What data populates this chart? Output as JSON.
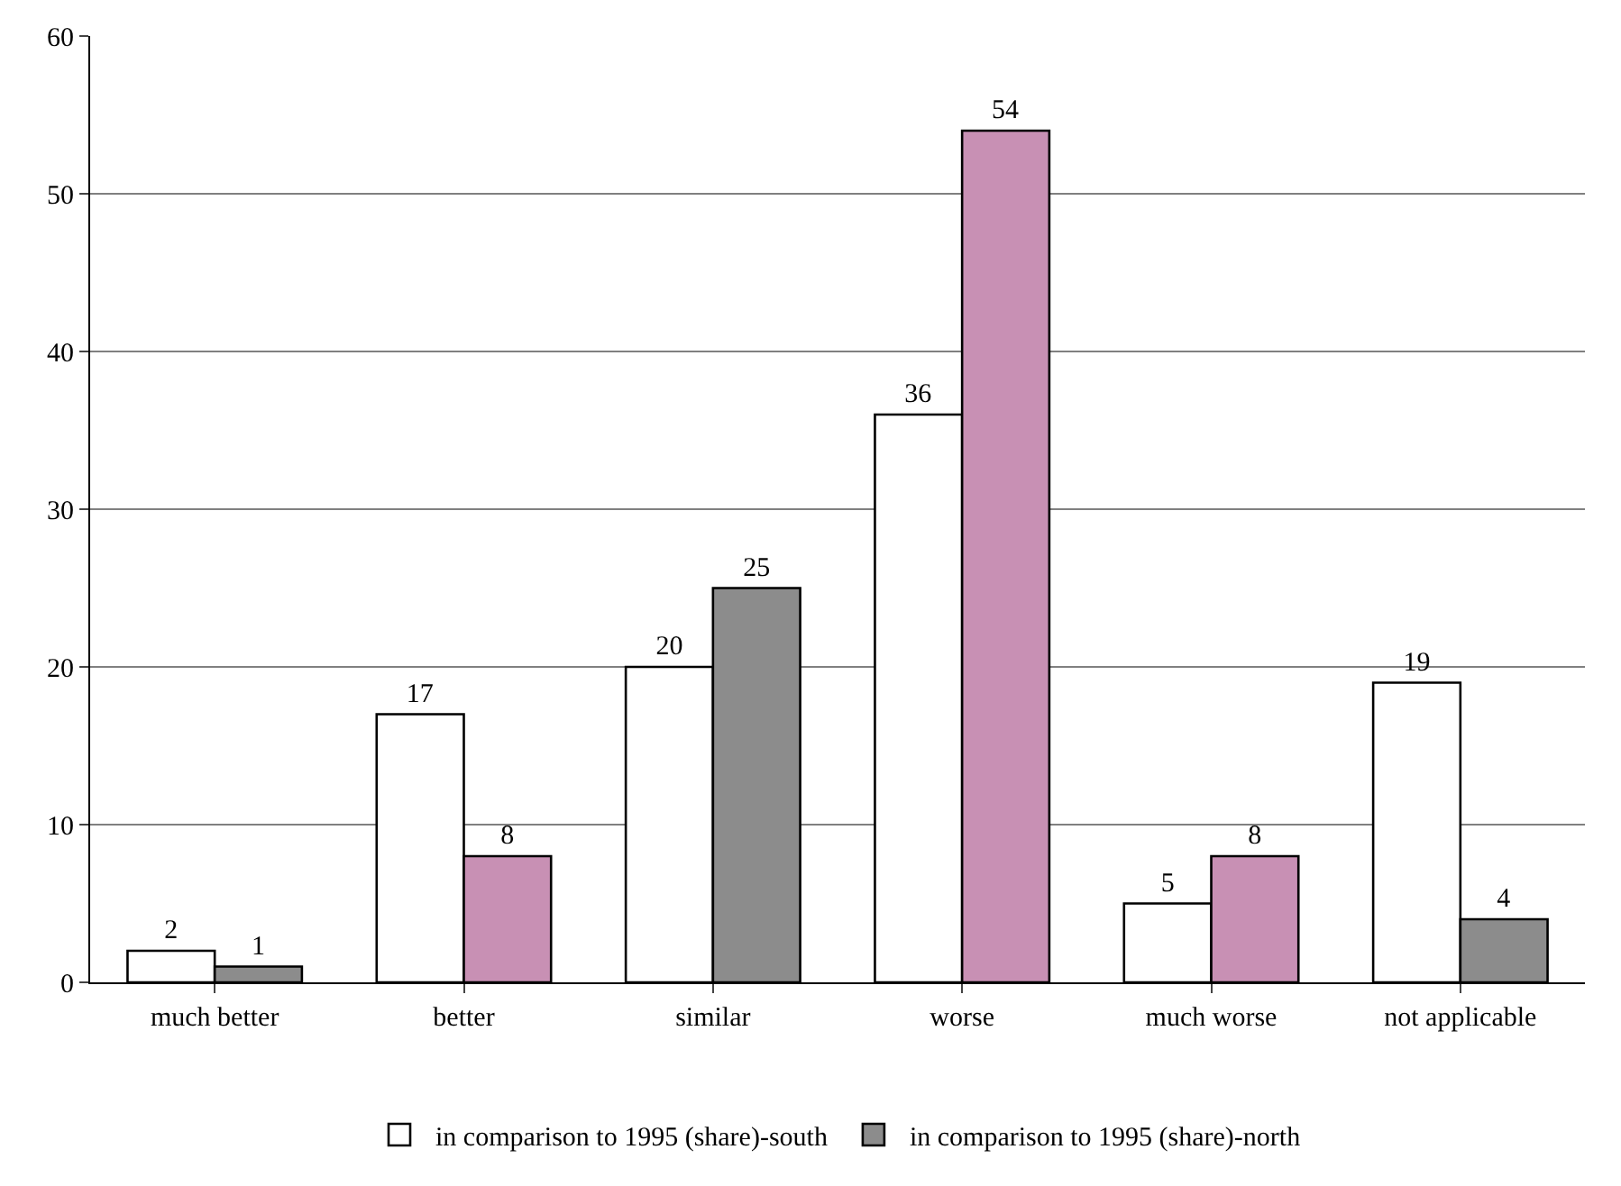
{
  "chart_data": {
    "type": "bar",
    "categories": [
      "much better",
      "better",
      "similar",
      "worse",
      "much worse",
      "not applicable"
    ],
    "series": [
      {
        "name": "in comparison to 1995 (share)-south",
        "color": "#ffffff",
        "values": [
          2,
          17,
          20,
          36,
          5,
          19
        ]
      },
      {
        "name": "in comparison to 1995 (share)-north",
        "colors": [
          "#8c8c8c",
          "#c890b4",
          "#8c8c8c",
          "#c890b4",
          "#c890b4",
          "#8c8c8c"
        ],
        "values": [
          1,
          8,
          25,
          54,
          8,
          4
        ]
      }
    ],
    "ylim": [
      0,
      60
    ],
    "yticks": [
      0,
      10,
      20,
      30,
      40,
      50,
      60
    ],
    "grid": "y",
    "legend": "bottom",
    "data_labels": true
  }
}
